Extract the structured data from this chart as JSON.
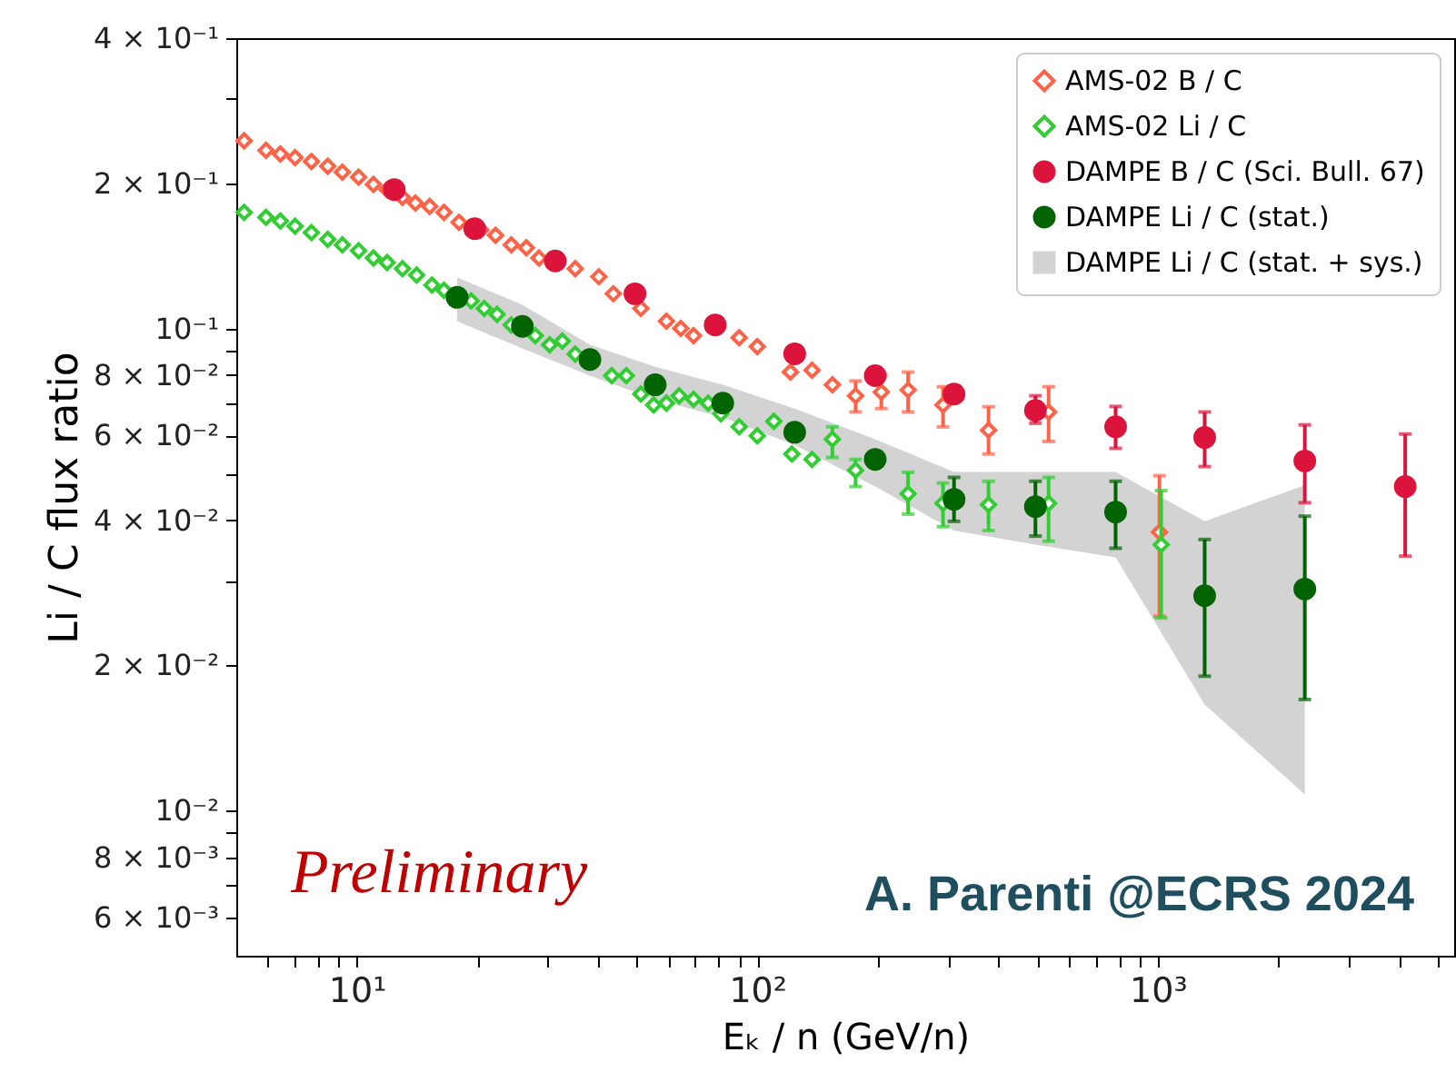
{
  "chart_data": {
    "type": "scatter",
    "xlabel": "Eₖ / n (GeV/n)",
    "ylabel": "Li / C flux ratio",
    "log": "xy",
    "legend": "top right",
    "xlim": [
      5,
      5500
    ],
    "ylim": [
      0.005,
      0.4
    ],
    "xticks": [
      {
        "value": 6,
        "label": null
      },
      {
        "value": 7,
        "label": null
      },
      {
        "value": 8,
        "label": null
      },
      {
        "value": 9,
        "label": null
      },
      {
        "value": 10,
        "label": "10¹"
      },
      {
        "value": 20,
        "label": null
      },
      {
        "value": 30,
        "label": null
      },
      {
        "value": 40,
        "label": null
      },
      {
        "value": 50,
        "label": null
      },
      {
        "value": 60,
        "label": null
      },
      {
        "value": 70,
        "label": null
      },
      {
        "value": 80,
        "label": null
      },
      {
        "value": 90,
        "label": null
      },
      {
        "value": 100,
        "label": "10²"
      },
      {
        "value": 200,
        "label": null
      },
      {
        "value": 300,
        "label": null
      },
      {
        "value": 400,
        "label": null
      },
      {
        "value": 500,
        "label": null
      },
      {
        "value": 600,
        "label": null
      },
      {
        "value": 700,
        "label": null
      },
      {
        "value": 800,
        "label": null
      },
      {
        "value": 900,
        "label": null
      },
      {
        "value": 1000,
        "label": "10³"
      },
      {
        "value": 2000,
        "label": null
      },
      {
        "value": 3000,
        "label": null
      },
      {
        "value": 4000,
        "label": null
      },
      {
        "value": 5000,
        "label": null
      }
    ],
    "yticks": [
      {
        "value": 0.006,
        "label": "6 × 10⁻³"
      },
      {
        "value": 0.007,
        "label": null
      },
      {
        "value": 0.008,
        "label": "8 × 10⁻³"
      },
      {
        "value": 0.009,
        "label": null
      },
      {
        "value": 0.01,
        "label": "10⁻²"
      },
      {
        "value": 0.02,
        "label": "2 × 10⁻²"
      },
      {
        "value": 0.03,
        "label": null
      },
      {
        "value": 0.04,
        "label": "4 × 10⁻²"
      },
      {
        "value": 0.05,
        "label": null
      },
      {
        "value": 0.06,
        "label": "6 × 10⁻²"
      },
      {
        "value": 0.07,
        "label": null
      },
      {
        "value": 0.08,
        "label": "8 × 10⁻²"
      },
      {
        "value": 0.09,
        "label": null
      },
      {
        "value": 0.1,
        "label": "10⁻¹"
      },
      {
        "value": 0.2,
        "label": "2 × 10⁻¹"
      },
      {
        "value": 0.3,
        "label": null
      },
      {
        "value": 0.4,
        "label": "4 × 10⁻¹"
      }
    ],
    "annotations": [
      "Preliminary",
      "A. Parenti @ECRS 2024"
    ],
    "series": [
      {
        "name": "AMS-02 B / C",
        "marker": "diamond",
        "color": "#ff6347",
        "x": [
          5.23,
          5.93,
          6.44,
          7.01,
          7.7,
          8.46,
          9.2,
          10.1,
          11.0,
          11.9,
          13.0,
          14.0,
          15.2,
          16.5,
          18.0,
          20.4,
          22.2,
          24.3,
          26.5,
          28.5,
          35.1,
          40.2,
          43.7,
          51.2,
          59.3,
          64.4,
          69.3,
          90.1,
          100,
          121,
          137,
          154,
          176,
          204,
          238,
          291,
          378,
          534,
          1010
        ],
        "values": [
          0.245,
          0.234,
          0.23,
          0.226,
          0.222,
          0.217,
          0.211,
          0.206,
          0.199,
          0.194,
          0.187,
          0.182,
          0.179,
          0.174,
          0.166,
          0.16,
          0.156,
          0.149,
          0.147,
          0.14,
          0.133,
          0.128,
          0.118,
          0.11,
          0.1035,
          0.1,
          0.0966,
          0.0957,
          0.0917,
          0.0812,
          0.0819,
          0.0764,
          0.0725,
          0.0738,
          0.0745,
          0.0694,
          0.0615,
          0.0671,
          0.0378
        ],
        "errors": [
          null,
          null,
          null,
          null,
          null,
          null,
          null,
          null,
          null,
          null,
          null,
          null,
          null,
          null,
          null,
          null,
          null,
          null,
          null,
          null,
          null,
          null,
          null,
          null,
          null,
          null,
          null,
          null,
          null,
          null,
          null,
          null,
          [
            0.0671,
            0.0778
          ],
          [
            0.0682,
            0.0798
          ],
          [
            0.0671,
            0.0812
          ],
          [
            0.0625,
            0.0757
          ],
          [
            0.0549,
            0.0688
          ],
          [
            0.0583,
            0.0757
          ],
          [
            0.0253,
            0.0495
          ]
        ]
      },
      {
        "name": "AMS-02 Li / C",
        "marker": "diamond",
        "color": "#32cd32",
        "x": [
          5.23,
          5.93,
          6.44,
          7.01,
          7.7,
          8.46,
          9.2,
          10.1,
          11.0,
          11.9,
          13.0,
          14.1,
          15.4,
          16.5,
          19.3,
          20.8,
          22.4,
          24.3,
          27.9,
          30.3,
          32.6,
          35.1,
          43.3,
          47.1,
          51.2,
          55.1,
          59.3,
          63.8,
          69.3,
          75.4,
          81.1,
          90.1,
          100,
          110,
          122,
          137,
          154,
          176,
          238,
          291,
          378,
          534,
          1020
        ],
        "values": [
          0.174,
          0.17,
          0.167,
          0.163,
          0.158,
          0.153,
          0.149,
          0.145,
          0.14,
          0.137,
          0.133,
          0.129,
          0.123,
          0.12,
          0.114,
          0.11,
          0.107,
          0.1017,
          0.0966,
          0.0925,
          0.0941,
          0.0885,
          0.0798,
          0.0798,
          0.0731,
          0.0694,
          0.07,
          0.0725,
          0.0713,
          0.07,
          0.0665,
          0.0625,
          0.0599,
          0.0642,
          0.0549,
          0.0535,
          0.0589,
          0.0508,
          0.0454,
          0.0434,
          0.0431,
          0.0434,
          0.0356
        ],
        "errors": [
          null,
          null,
          null,
          null,
          null,
          null,
          null,
          null,
          null,
          null,
          null,
          null,
          null,
          null,
          null,
          null,
          null,
          null,
          null,
          null,
          null,
          null,
          null,
          null,
          null,
          null,
          null,
          null,
          null,
          null,
          null,
          null,
          null,
          null,
          null,
          null,
          [
            0.054,
            0.0625
          ],
          [
            0.047,
            0.0535
          ],
          [
            0.0412,
            0.0503
          ],
          [
            0.0388,
            0.0478
          ],
          [
            0.0381,
            0.0482
          ],
          [
            0.0362,
            0.0491
          ],
          [
            0.0251,
            0.0461
          ]
        ]
      },
      {
        "name": "DAMPE B / C (Sci. Bull. 67)",
        "marker": "circle",
        "color": "#dc143c",
        "x": [
          12.4,
          19.7,
          31.3,
          49.5,
          78.5,
          124,
          197,
          310,
          495,
          785,
          1310,
          2330,
          4150
        ],
        "values": [
          0.194,
          0.161,
          0.138,
          0.118,
          0.1017,
          0.0886,
          0.0798,
          0.0731,
          0.0676,
          0.0625,
          0.0594,
          0.0531,
          0.047
        ],
        "errors": [
          null,
          null,
          null,
          null,
          null,
          null,
          null,
          null,
          [
            0.0636,
            0.0725
          ],
          [
            0.0564,
            0.0689
          ],
          [
            0.0517,
            0.0671
          ],
          [
            0.0435,
            0.0631
          ],
          [
            0.0337,
            0.0604
          ]
        ]
      },
      {
        "name": "DAMPE Li / C (stat.)",
        "marker": "circle",
        "color": "#006400",
        "x": [
          17.8,
          25.9,
          38.2,
          55.6,
          82.0,
          124,
          197,
          310,
          495,
          785,
          1310,
          2330
        ],
        "values": [
          0.116,
          0.101,
          0.0862,
          0.0764,
          0.07,
          0.0609,
          0.0535,
          0.0442,
          0.0427,
          0.0416,
          0.0279,
          0.0288
        ],
        "errors": [
          null,
          null,
          null,
          null,
          null,
          null,
          null,
          [
            0.0398,
            0.0491
          ],
          [
            0.0371,
            0.0482
          ],
          [
            0.035,
            0.0482
          ],
          [
            0.019,
            0.0365
          ],
          [
            0.017,
            0.0408
          ]
        ]
      },
      {
        "name": "DAMPE Li / C (stat. + sys.)",
        "type": "area",
        "color": "#d3d3d3",
        "x": [
          17.8,
          25.9,
          38.2,
          55.6,
          82.0,
          124,
          197,
          310,
          495,
          785,
          1310,
          2330
        ],
        "values": [
          null,
          null,
          null,
          null,
          null,
          null,
          null,
          null,
          null,
          null,
          null,
          null
        ],
        "lower": [
          0.1035,
          0.0909,
          0.0798,
          0.0713,
          0.0654,
          0.0573,
          0.047,
          0.0381,
          0.0356,
          0.0335,
          0.0166,
          0.0108
        ],
        "upper": [
          0.1276,
          0.112,
          0.0925,
          0.0833,
          0.0764,
          0.0682,
          0.0589,
          0.0504,
          0.0504,
          0.0504,
          0.0398,
          0.0473
        ]
      }
    ]
  }
}
